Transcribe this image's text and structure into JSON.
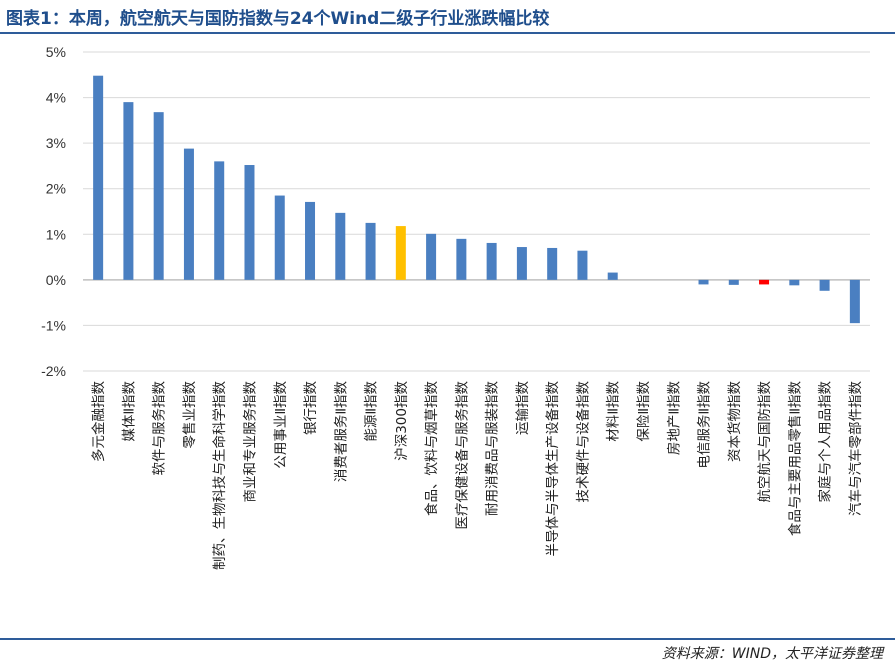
{
  "header": {
    "title": "图表1：本周，航空航天与国防指数与24个Wind二级子行业涨跌幅比较"
  },
  "footer": {
    "source": "资料来源：WIND，太平洋证券整理"
  },
  "colors": {
    "default_bar": "#4a7fc1",
    "benchmark_bar": "#ffc000",
    "focus_bar": "#ff0000",
    "grid": "#d9d9d9",
    "zero_line": "#bfbfbf"
  },
  "chart_data": {
    "type": "bar",
    "title": "",
    "xlabel": "",
    "ylabel": "",
    "ylim": [
      -2,
      5
    ],
    "yticks": [
      -2,
      -1,
      0,
      1,
      2,
      3,
      4,
      5
    ],
    "ytick_labels": [
      "-2%",
      "-1%",
      "0%",
      "1%",
      "2%",
      "3%",
      "4%",
      "5%"
    ],
    "grid": true,
    "legend": "none",
    "categories": [
      "多元金融指数",
      "媒体Ⅱ指数",
      "软件与服务指数",
      "零售业指数",
      "制药、生物科技与生命科学指数",
      "商业和专业服务指数",
      "公用事业Ⅱ指数",
      "银行指数",
      "消费者服务Ⅱ指数",
      "能源Ⅱ指数",
      "沪深300指数",
      "食品、饮料与烟草指数",
      "医疗保健设备与服务指数",
      "耐用消费品与服装指数",
      "运输指数",
      "半导体与半导体生产设备指数",
      "技术硬件与设备指数",
      "材料Ⅱ指数",
      "保险Ⅱ指数",
      "房地产Ⅱ指数",
      "电信服务Ⅱ指数",
      "资本货物指数",
      "航空航天与国防指数",
      "食品与主要用品零售Ⅱ指数",
      "家庭与个人用品指数",
      "汽车与汽车零部件指数"
    ],
    "values": [
      4.48,
      3.9,
      3.68,
      2.88,
      2.6,
      2.52,
      1.85,
      1.71,
      1.47,
      1.25,
      1.18,
      1.01,
      0.9,
      0.81,
      0.72,
      0.7,
      0.64,
      0.16,
      0.0,
      0.0,
      -0.1,
      -0.11,
      -0.1,
      -0.12,
      -0.24,
      -0.95
    ],
    "highlight": {
      "沪深300指数": "benchmark_bar",
      "航空航天与国防指数": "focus_bar"
    }
  }
}
